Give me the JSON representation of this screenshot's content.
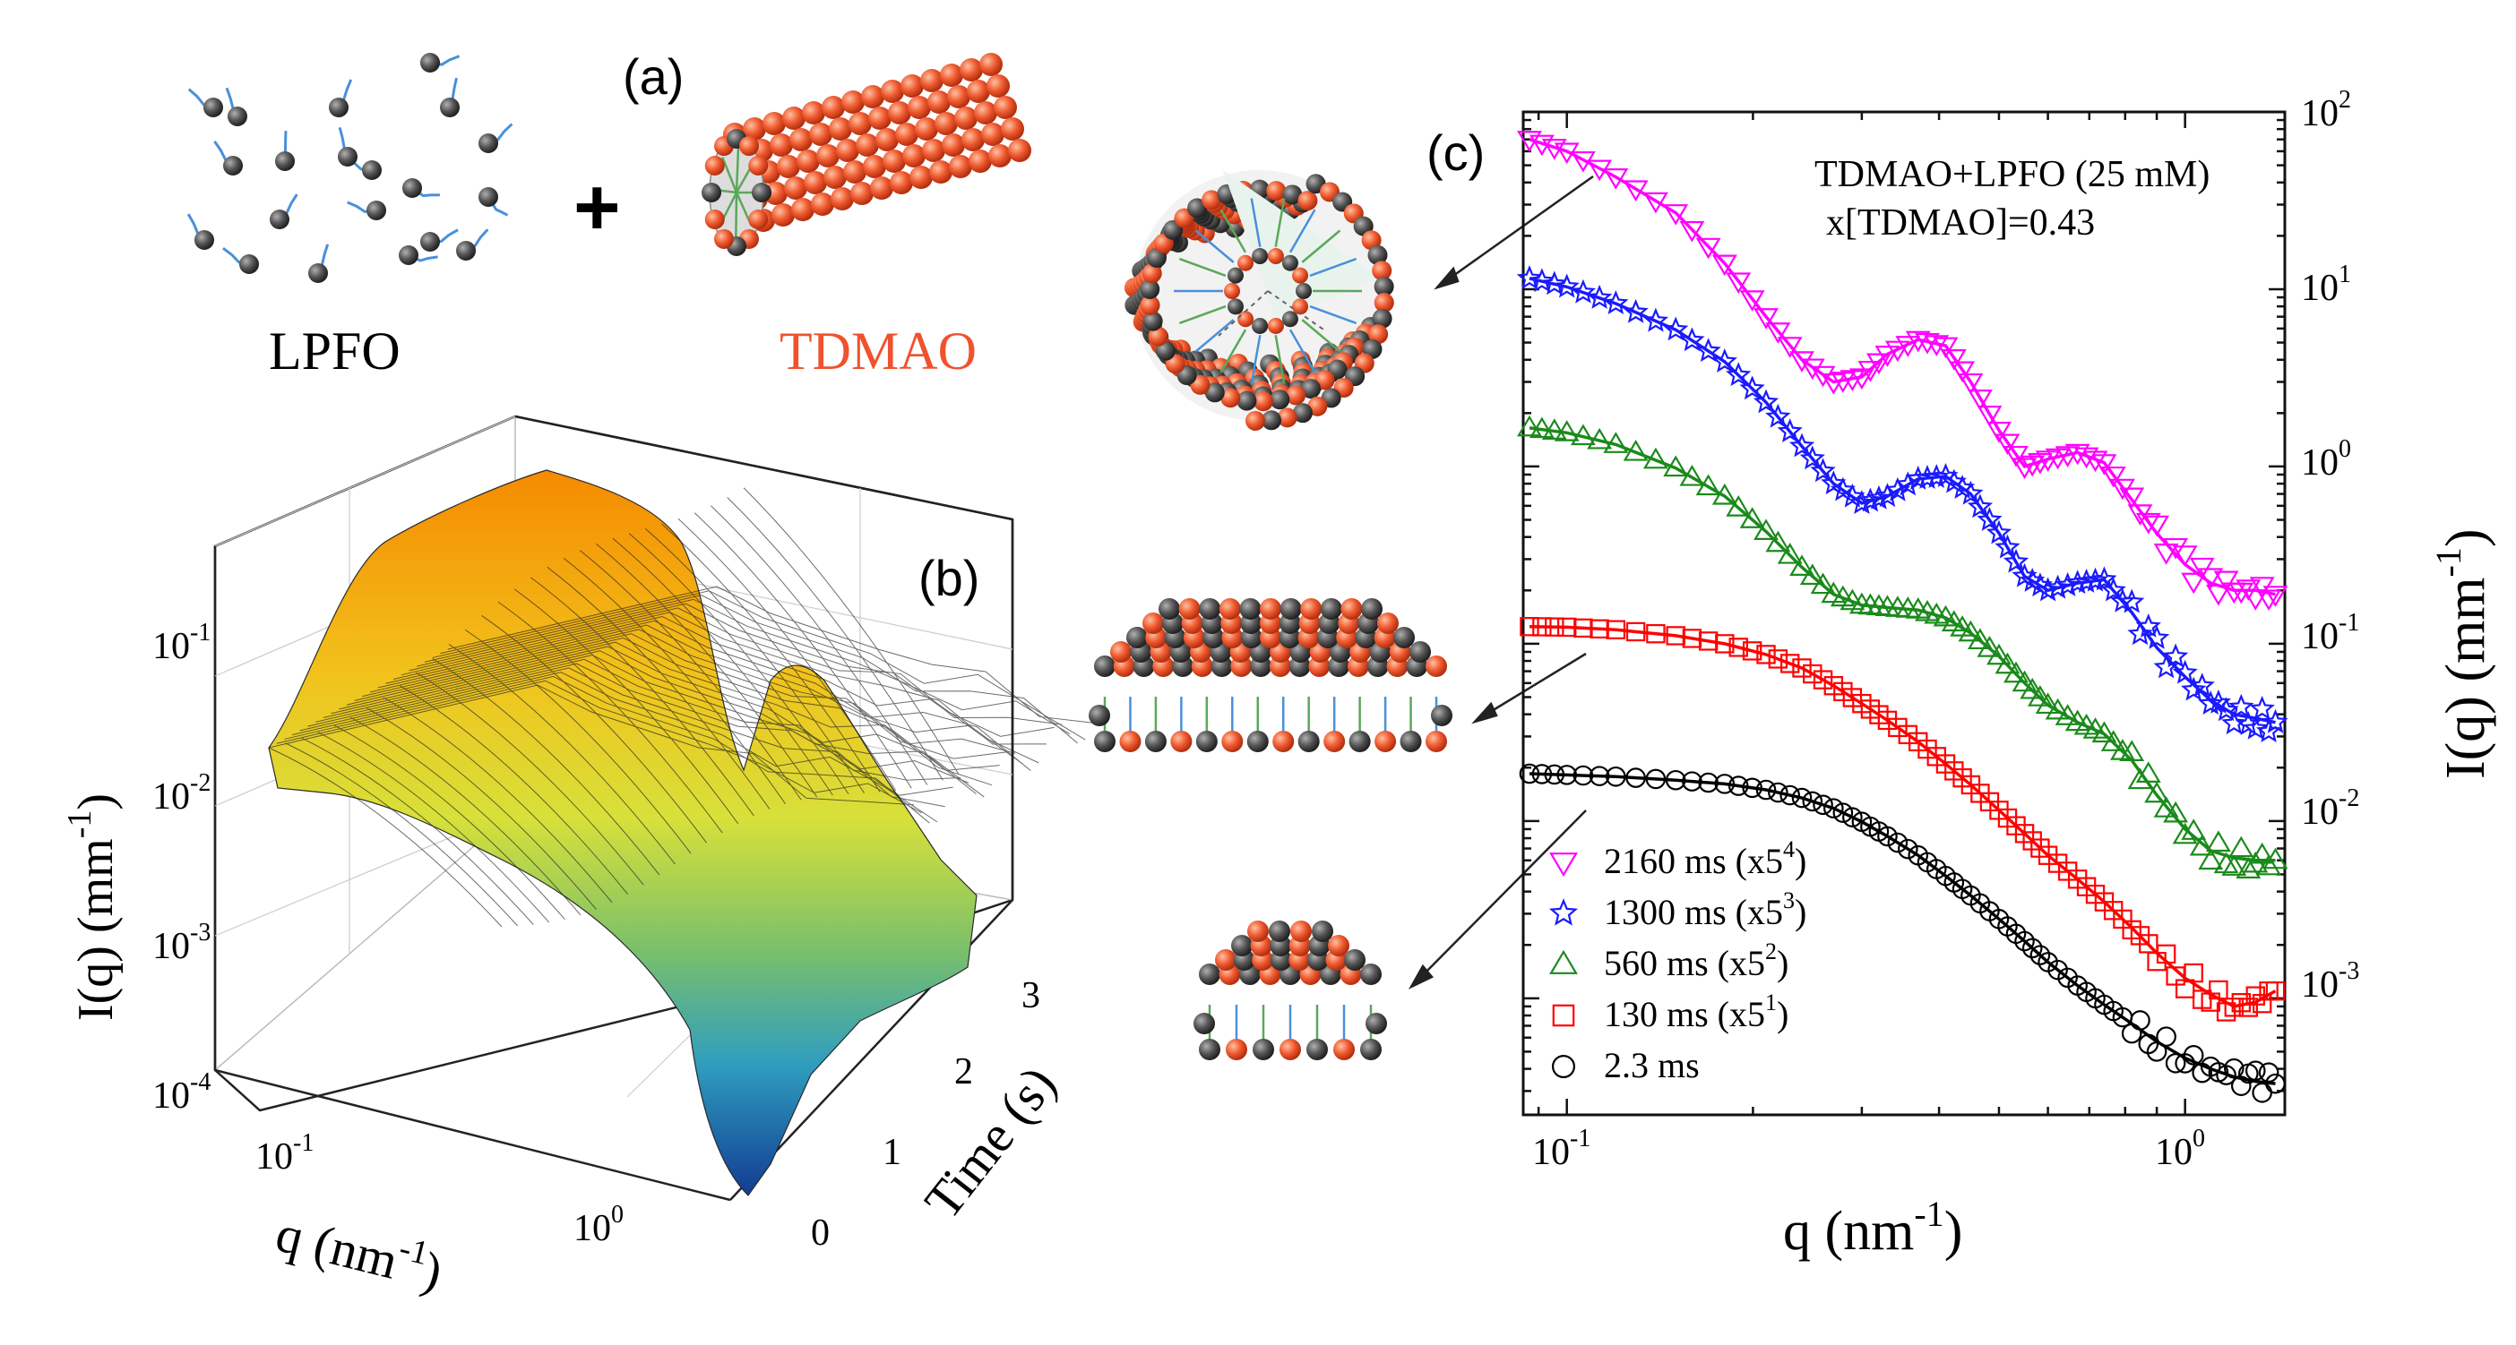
{
  "panel_a": {
    "label": "(a)",
    "left_label": "LPFO",
    "right_label": "TDMAO",
    "plus": "+",
    "right_label_color": "#f0522d"
  },
  "panel_b": {
    "label": "(b)",
    "ylabel_text": "I(q) (mm",
    "ylabel_sup": "-1",
    "ylabel_close": ")",
    "xlabel_text": "q (nm",
    "xlabel_sup": "-1",
    "xlabel_close": ")",
    "tlabel": "Time (s)",
    "z_ticks": [
      {
        "base": "10",
        "exp": "-1"
      },
      {
        "base": "10",
        "exp": "-2"
      },
      {
        "base": "10",
        "exp": "-3"
      },
      {
        "base": "10",
        "exp": "-4"
      }
    ],
    "q_ticks": [
      {
        "base": "10",
        "exp": "-1"
      },
      {
        "base": "10",
        "exp": "0"
      }
    ],
    "t_ticks": [
      "0",
      "1",
      "2",
      "3"
    ]
  },
  "panel_c": {
    "label": "(c)",
    "annotation_line1": "TDMAO+LPFO (25 mM)",
    "annotation_line2": "x[TDMAO]=0.43"
  },
  "chart_data": {
    "type": "scatter",
    "xscale": "log",
    "yscale": "log",
    "xlim": [
      0.085,
      1.45
    ],
    "ylim": [
      0.00022,
      100
    ],
    "xlabel": "q (nm-1)",
    "ylabel": "I(q) (mm-1)",
    "x_ticks": [
      {
        "base": "10",
        "exp": "-1",
        "value": 0.1
      },
      {
        "base": "10",
        "exp": "0",
        "value": 1
      }
    ],
    "y_ticks": [
      {
        "base": "10",
        "exp": "2",
        "value": 100
      },
      {
        "base": "10",
        "exp": "1",
        "value": 10
      },
      {
        "base": "10",
        "exp": "0",
        "value": 1
      },
      {
        "base": "10",
        "exp": "-1",
        "value": 0.1
      },
      {
        "base": "10",
        "exp": "-2",
        "value": 0.01
      },
      {
        "base": "10",
        "exp": "-3",
        "value": 0.001
      }
    ],
    "legend_position": "bottom-left",
    "series": [
      {
        "name": "2160 ms (x5",
        "sup": "4",
        "close": ")",
        "marker": "triangle-down",
        "color": "#ff00ff",
        "q": [
          0.087,
          0.1,
          0.12,
          0.15,
          0.18,
          0.21,
          0.24,
          0.27,
          0.3,
          0.33,
          0.37,
          0.41,
          0.45,
          0.5,
          0.55,
          0.6,
          0.67,
          0.74,
          0.82,
          0.9,
          1.0,
          1.1,
          1.2,
          1.3,
          1.4
        ],
        "I": [
          70,
          60,
          43,
          27,
          14,
          7.0,
          4.0,
          3.0,
          3.2,
          4.3,
          5.2,
          4.8,
          3.0,
          1.6,
          1.0,
          1.1,
          1.2,
          1.05,
          0.65,
          0.42,
          0.28,
          0.22,
          0.2,
          0.2,
          0.19
        ]
      },
      {
        "name": "1300 ms (x5",
        "sup": "3",
        "close": ")",
        "marker": "star",
        "color": "#1a1aff",
        "q": [
          0.087,
          0.1,
          0.12,
          0.15,
          0.18,
          0.21,
          0.24,
          0.27,
          0.3,
          0.33,
          0.37,
          0.41,
          0.45,
          0.5,
          0.55,
          0.6,
          0.67,
          0.74,
          0.82,
          0.9,
          1.0,
          1.1,
          1.2,
          1.3,
          1.4
        ],
        "I": [
          11.5,
          10.3,
          8.3,
          5.9,
          3.9,
          2.3,
          1.3,
          0.8,
          0.62,
          0.68,
          0.85,
          0.88,
          0.7,
          0.42,
          0.24,
          0.2,
          0.22,
          0.23,
          0.15,
          0.095,
          0.065,
          0.048,
          0.04,
          0.038,
          0.036
        ]
      },
      {
        "name": "560 ms (x5",
        "sup": "2",
        "close": ")",
        "marker": "triangle-up",
        "color": "#1a8a1a",
        "q": [
          0.087,
          0.1,
          0.12,
          0.15,
          0.18,
          0.21,
          0.24,
          0.27,
          0.3,
          0.33,
          0.37,
          0.41,
          0.45,
          0.5,
          0.55,
          0.6,
          0.67,
          0.74,
          0.82,
          0.9,
          1.0,
          1.1,
          1.2,
          1.3,
          1.4
        ],
        "I": [
          1.65,
          1.55,
          1.33,
          0.98,
          0.68,
          0.43,
          0.27,
          0.19,
          0.165,
          0.16,
          0.155,
          0.14,
          0.115,
          0.085,
          0.06,
          0.045,
          0.036,
          0.031,
          0.022,
          0.014,
          0.009,
          0.0068,
          0.0062,
          0.006,
          0.006
        ]
      },
      {
        "name": "130 ms (x5",
        "sup": "1",
        "close": ")",
        "marker": "square",
        "color": "#ff0000",
        "q": [
          0.087,
          0.1,
          0.12,
          0.15,
          0.18,
          0.21,
          0.24,
          0.27,
          0.3,
          0.33,
          0.37,
          0.41,
          0.45,
          0.5,
          0.55,
          0.6,
          0.67,
          0.74,
          0.82,
          0.9,
          1.0,
          1.1,
          1.2,
          1.3,
          1.4
        ],
        "I": [
          0.125,
          0.124,
          0.12,
          0.111,
          0.1,
          0.087,
          0.073,
          0.058,
          0.046,
          0.037,
          0.028,
          0.021,
          0.016,
          0.0115,
          0.0085,
          0.0064,
          0.0047,
          0.0035,
          0.0025,
          0.0018,
          0.0013,
          0.00105,
          0.0009,
          0.00095,
          0.0011
        ]
      },
      {
        "name": "2.3 ms",
        "sup": "",
        "close": "",
        "marker": "circle",
        "color": "#000000",
        "q": [
          0.087,
          0.1,
          0.12,
          0.15,
          0.18,
          0.21,
          0.24,
          0.27,
          0.3,
          0.33,
          0.37,
          0.41,
          0.45,
          0.5,
          0.55,
          0.6,
          0.67,
          0.74,
          0.82,
          0.9,
          1.0,
          1.1,
          1.2,
          1.3,
          1.4
        ],
        "I": [
          0.0185,
          0.0182,
          0.0178,
          0.017,
          0.0162,
          0.015,
          0.0135,
          0.0118,
          0.0099,
          0.0082,
          0.0064,
          0.0049,
          0.0038,
          0.0028,
          0.0021,
          0.0016,
          0.00118,
          0.00092,
          0.00072,
          0.00057,
          0.00046,
          0.0004,
          0.00036,
          0.00034,
          0.00033
        ]
      }
    ]
  }
}
